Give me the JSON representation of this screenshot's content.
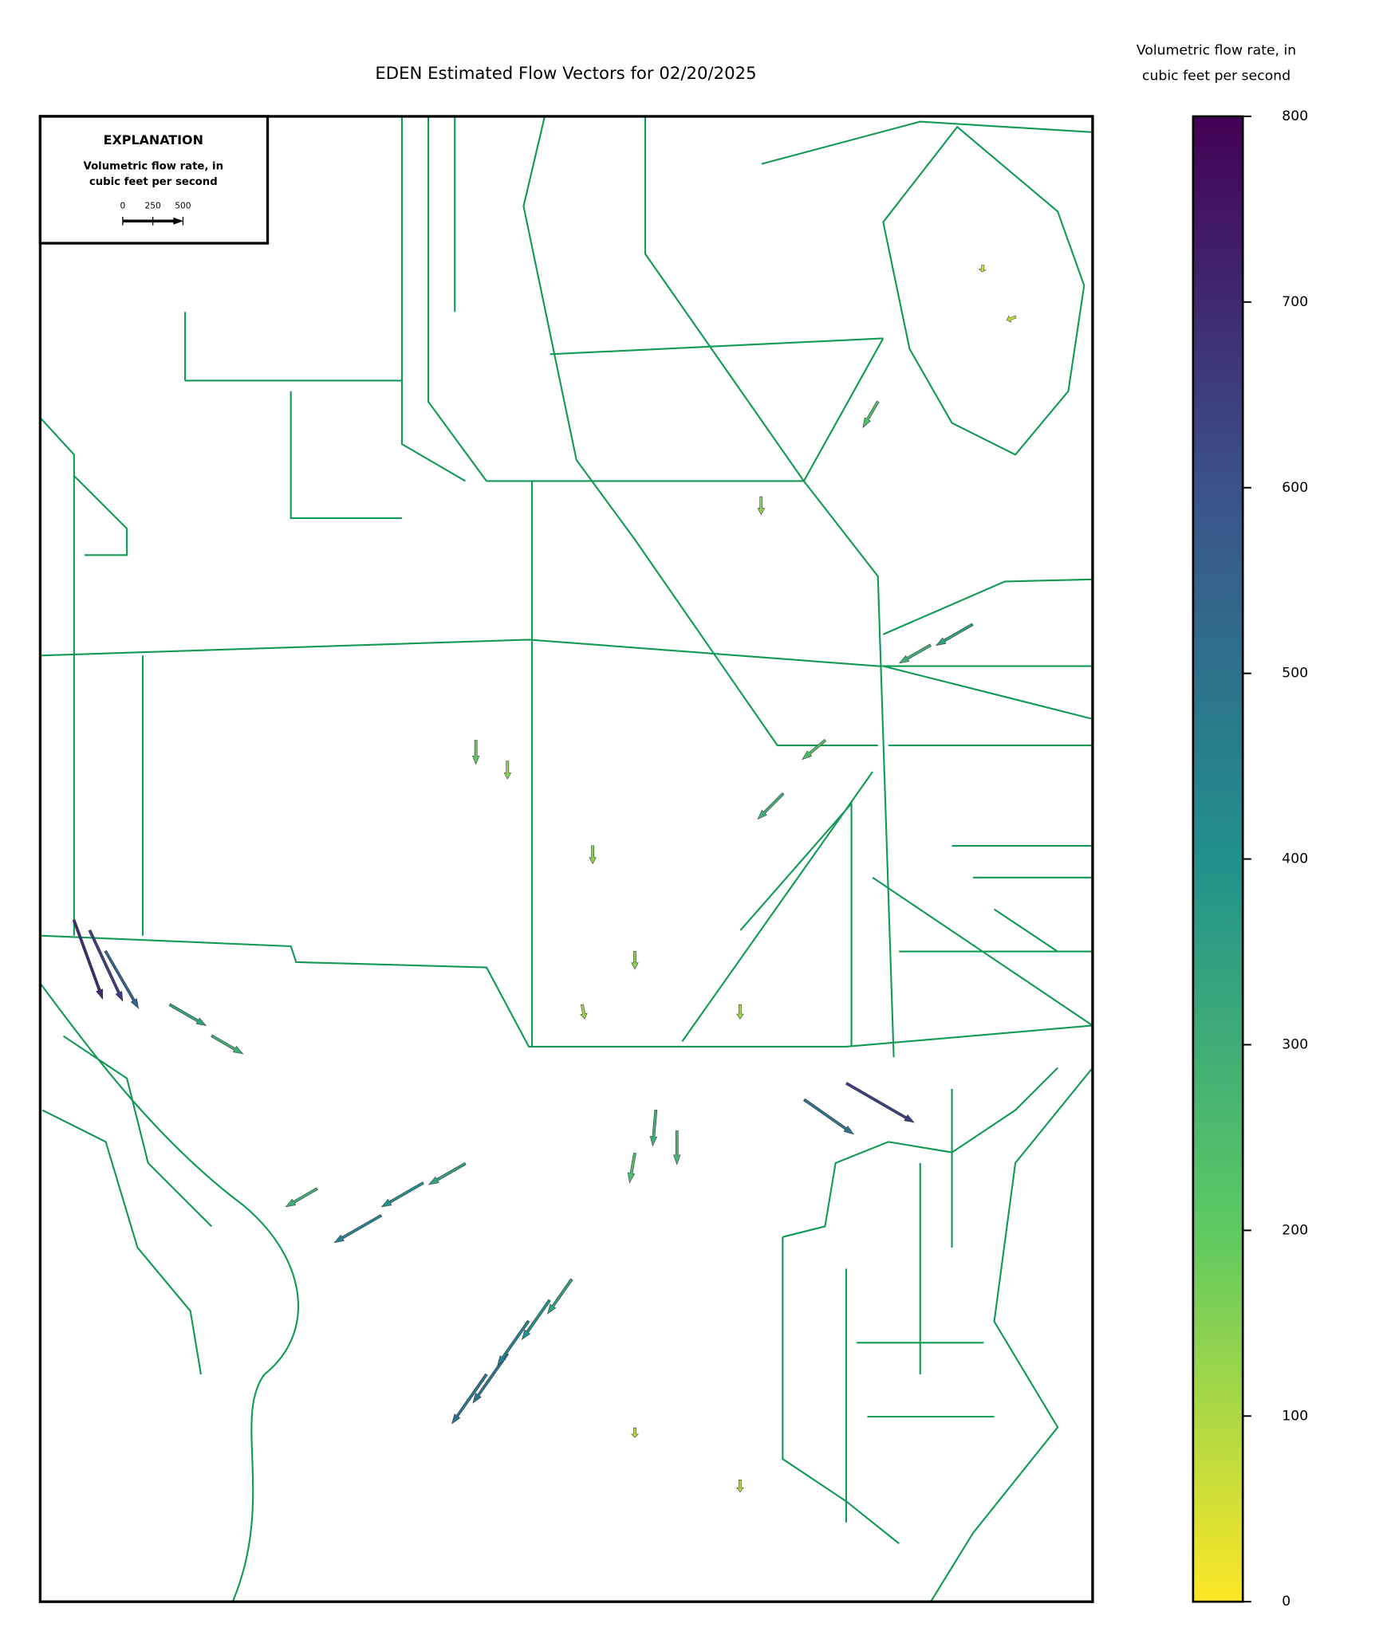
{
  "chart_data": {
    "type": "quiver",
    "title": "EDEN Estimated Flow Vectors for 02/20/2025",
    "colorbar": {
      "label_lines": [
        "Volumetric flow rate, in",
        "cubic feet per second"
      ],
      "lim": [
        0,
        800
      ],
      "ticks": [
        0,
        100,
        200,
        300,
        400,
        500,
        600,
        700,
        800
      ],
      "colors": [
        "#fde725",
        "#5ec962",
        "#21918c",
        "#3b528b",
        "#440154"
      ]
    },
    "explanation": {
      "title": "EXPLANATION",
      "label_lines": [
        "Volumetric flow rate, in",
        "cubic feet per second"
      ],
      "scale_ticks": [
        0,
        250,
        500
      ]
    },
    "vectors": {
      "x": [
        0.032,
        0.047,
        0.062,
        0.123,
        0.163,
        0.263,
        0.324,
        0.364,
        0.404,
        0.444,
        0.464,
        0.484,
        0.424,
        0.505,
        0.585,
        0.605,
        0.565,
        0.766,
        0.726,
        0.706,
        0.746,
        0.886,
        0.846,
        0.796,
        0.685,
        0.414,
        0.444,
        0.525,
        0.565,
        0.665,
        0.565,
        0.665,
        0.896,
        0.927,
        0.515
      ],
      "y": [
        0.459,
        0.452,
        0.438,
        0.402,
        0.381,
        0.278,
        0.26,
        0.282,
        0.295,
        0.167,
        0.189,
        0.203,
        0.153,
        0.217,
        0.331,
        0.317,
        0.302,
        0.349,
        0.338,
        0.544,
        0.58,
        0.658,
        0.644,
        0.808,
        0.744,
        0.58,
        0.566,
        0.509,
        0.438,
        0.402,
        0.117,
        0.082,
        0.9,
        0.865,
        0.402
      ],
      "magnitude": [
        700,
        650,
        550,
        350,
        300,
        300,
        450,
        400,
        350,
        500,
        450,
        400,
        500,
        350,
        300,
        280,
        250,
        650,
        500,
        300,
        250,
        350,
        300,
        250,
        150,
        200,
        150,
        150,
        150,
        120,
        80,
        100,
        60,
        80,
        120
      ],
      "direction": [
        -70,
        -65,
        -60,
        -30,
        -30,
        -150,
        -150,
        -150,
        -150,
        -125,
        -125,
        -125,
        -125,
        -125,
        -95,
        -90,
        -100,
        -30,
        -35,
        -135,
        -140,
        -150,
        -150,
        -120,
        -90,
        -90,
        -90,
        -90,
        -90,
        -90,
        -90,
        -90,
        -100,
        -160,
        -80
      ]
    }
  }
}
